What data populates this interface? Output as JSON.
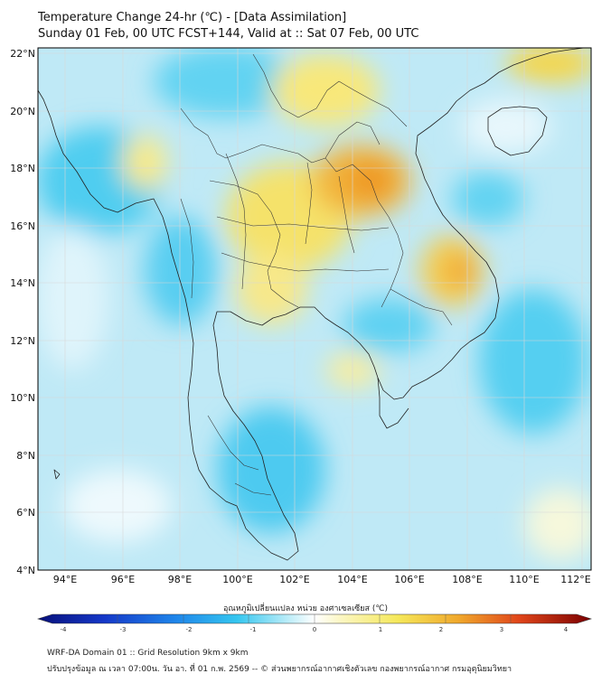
{
  "header": {
    "title_line1": "Temperature Change 24-hr (℃) - [Data Assimilation]",
    "title_line2": "Sunday 01 Feb, 00 UTC FCST+144, Valid at :: Sat 07 Feb, 00 UTC"
  },
  "map": {
    "lat_labels": [
      "22°N",
      "20°N",
      "18°N",
      "16°N",
      "14°N",
      "12°N",
      "10°N",
      "8°N",
      "6°N",
      "4°N"
    ],
    "lon_labels": [
      "94°E",
      "96°E",
      "98°E",
      "100°E",
      "102°E",
      "104°E",
      "106°E",
      "108°E",
      "110°E",
      "112°E"
    ],
    "colors": {
      "cold_strong": "#08107a",
      "cold": "#1f57e0",
      "cool": "#35c6ef",
      "neutral": "#ffffff",
      "warm": "#f5e85a",
      "hot": "#f0901c",
      "hot_strong": "#7a0000"
    }
  },
  "colorbar": {
    "title": "อุณหภูมิเปลี่ยนแปลง หน่วย องศาเซลเซียส (℃)",
    "ticks": [
      "-4",
      "-3",
      "-2",
      "-1",
      "0",
      "1",
      "2",
      "3",
      "4"
    ]
  },
  "footer": {
    "line1": "WRF-DA Domain 01 :: Grid Resolution 9km x 9km",
    "line2": "ปรับปรุงข้อมูล ณ เวลา 07:00น. วัน อา. ที่ 01 ก.พ. 2569 -- © ส่วนพยากรณ์อากาศเชิงตัวเลข กองพยากรณ์อากาศ กรมอุตุนิยมวิทยา"
  }
}
